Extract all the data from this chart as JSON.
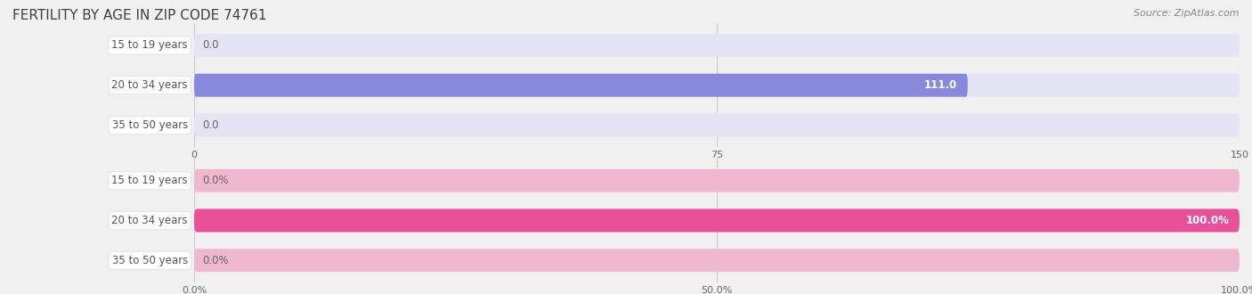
{
  "title": "FERTILITY BY AGE IN ZIP CODE 74761",
  "source": "Source: ZipAtlas.com",
  "top_chart": {
    "categories": [
      "15 to 19 years",
      "20 to 34 years",
      "35 to 50 years"
    ],
    "values": [
      0.0,
      111.0,
      0.0
    ],
    "bar_color": "#8888dd",
    "bar_bg_color": "#e4e4f4",
    "xlim_max": 150.0,
    "xticks": [
      0.0,
      75.0,
      150.0
    ],
    "value_labels": [
      "0.0",
      "111.0",
      "0.0"
    ]
  },
  "bottom_chart": {
    "categories": [
      "15 to 19 years",
      "20 to 34 years",
      "35 to 50 years"
    ],
    "values": [
      0.0,
      100.0,
      0.0
    ],
    "bar_color": "#e8509a",
    "bar_bg_color": "#f0b8d0",
    "xlim_max": 100.0,
    "xticks": [
      0.0,
      50.0,
      100.0
    ],
    "xticklabels": [
      "0.0%",
      "50.0%",
      "100.0%"
    ],
    "value_labels": [
      "0.0%",
      "100.0%",
      "0.0%"
    ]
  },
  "background_color": "#f0f0f0",
  "label_bg_color": "#ffffff",
  "title_color": "#404040",
  "title_fontsize": 11,
  "label_fontsize": 8.5,
  "tick_fontsize": 8,
  "source_fontsize": 8,
  "bar_height": 0.58,
  "label_text_color": "#555555",
  "value_label_color_inside": "#ffffff",
  "value_label_color_outside": "#666666"
}
